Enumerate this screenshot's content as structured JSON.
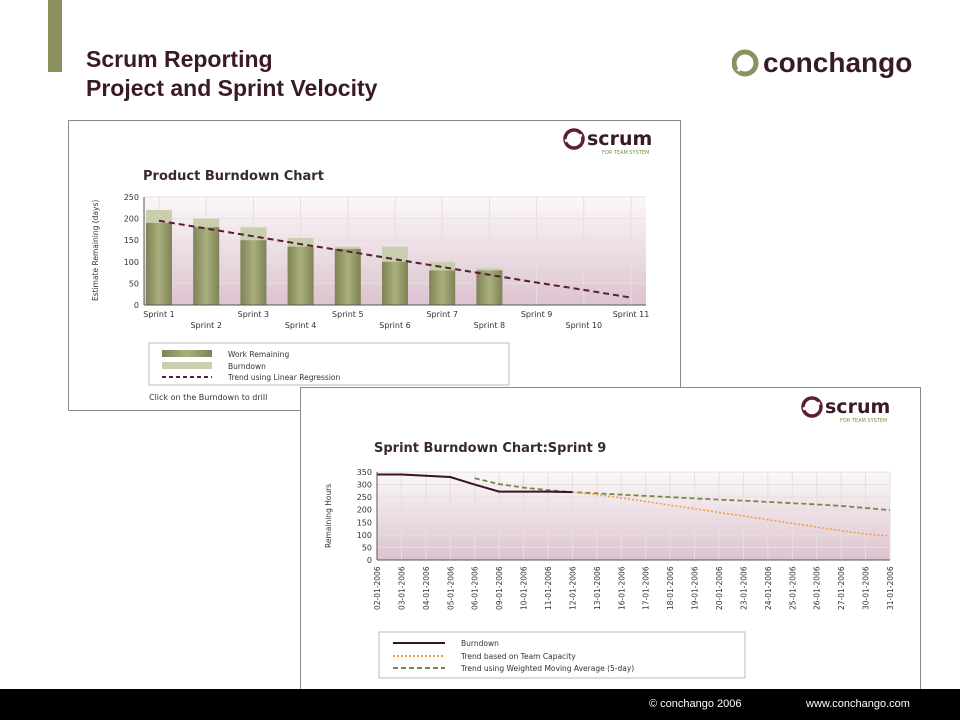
{
  "slide": {
    "title_line1": "Scrum Reporting",
    "title_line2": "Project and Sprint Velocity",
    "logo_text": "conchango",
    "footer_copyright": "© conchango 2006",
    "footer_url": "www.conchango.com",
    "brand_color": "#3a1a27",
    "accent_color": "#8d9160"
  },
  "product_panel": {
    "badge_text": "scrum",
    "badge_subtext": "FOR TEAM SYSTEM",
    "hint_text": "Click on the Burndown to drill"
  },
  "sprint_panel": {
    "badge_text": "scrum",
    "badge_subtext": "FOR TEAM SYSTEM"
  },
  "chart_data": [
    {
      "type": "bar",
      "title": "Product Burndown Chart",
      "ylabel": "Estimate Remaining (days)",
      "xlabel": "",
      "ylim": [
        0,
        250
      ],
      "yticks": [
        0,
        50,
        100,
        150,
        200,
        250
      ],
      "grid": true,
      "legend_position": "bottom-left",
      "categories": [
        "Sprint 1",
        "Sprint 2",
        "Sprint 3",
        "Sprint 4",
        "Sprint 5",
        "Sprint 6",
        "Sprint 7",
        "Sprint 8",
        "Sprint 9",
        "Sprint 10",
        "Sprint 11"
      ],
      "series": [
        {
          "name": "Work Remaining",
          "values": [
            190,
            180,
            150,
            135,
            130,
            100,
            80,
            80,
            null,
            null,
            null
          ],
          "color": "#8f9363"
        },
        {
          "name": "Burndown",
          "values": [
            220,
            200,
            180,
            155,
            135,
            135,
            100,
            85,
            null,
            null,
            null
          ],
          "color": "#c9cfae"
        },
        {
          "name": "Trend using Linear Regression",
          "values": [
            195,
            177,
            159,
            141,
            124,
            106,
            88,
            70,
            52,
            35,
            17
          ],
          "color": "#5a1f30"
        }
      ]
    },
    {
      "type": "line",
      "title": "Sprint Burndown Chart:Sprint 9",
      "ylabel": "Remaining Hours",
      "xlabel": "",
      "ylim": [
        0,
        350
      ],
      "yticks": [
        0,
        50,
        100,
        150,
        200,
        250,
        300,
        350
      ],
      "grid": true,
      "legend_position": "bottom-left",
      "x": [
        "02-01-2006",
        "03-01-2006",
        "04-01-2006",
        "05-01-2006",
        "06-01-2006",
        "09-01-2006",
        "10-01-2006",
        "11-01-2006",
        "12-01-2006",
        "13-01-2006",
        "16-01-2006",
        "17-01-2006",
        "18-01-2006",
        "19-01-2006",
        "20-01-2006",
        "23-01-2006",
        "24-01-2006",
        "25-01-2006",
        "26-01-2006",
        "27-01-2006",
        "30-01-2006",
        "31-01-2006"
      ],
      "series": [
        {
          "name": "Burndown",
          "values": [
            340,
            340,
            335,
            330,
            300,
            272,
            272,
            272,
            270,
            null,
            null,
            null,
            null,
            null,
            null,
            null,
            null,
            null,
            null,
            null,
            null,
            null
          ],
          "color": "#3a1128"
        },
        {
          "name": "Trend based on Team Capacity",
          "values": [
            null,
            null,
            null,
            null,
            null,
            null,
            null,
            null,
            270,
            260,
            247,
            233,
            218,
            204,
            189,
            175,
            160,
            146,
            131,
            117,
            103,
            96
          ],
          "color": "#f0a040"
        },
        {
          "name": "Trend using Weighted Moving Average (5-day)",
          "values": [
            null,
            null,
            null,
            null,
            325,
            302,
            288,
            278,
            270,
            265,
            260,
            255,
            250,
            245,
            240,
            236,
            231,
            226,
            221,
            215,
            207,
            198
          ],
          "color": "#6f8a4c"
        }
      ]
    }
  ]
}
